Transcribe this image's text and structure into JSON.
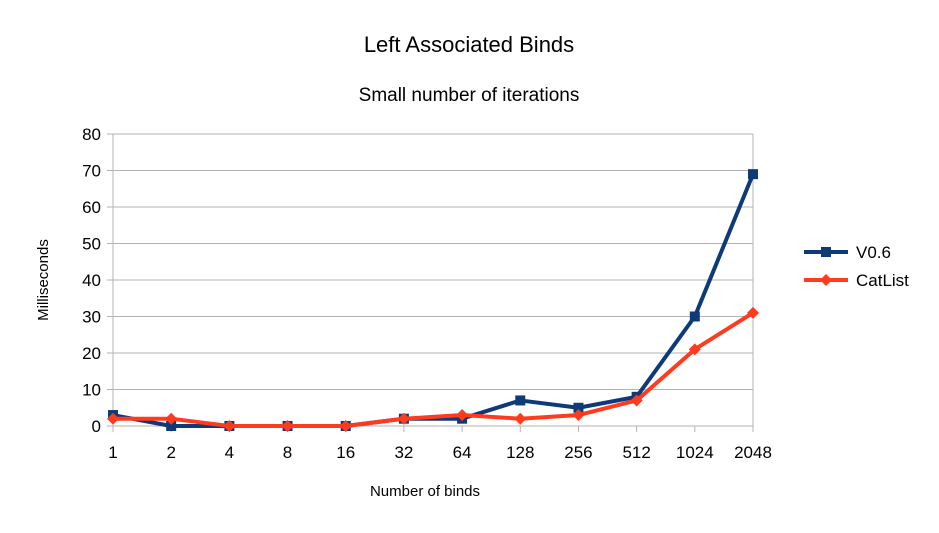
{
  "chart_data": {
    "type": "line",
    "title": "Left Associated Binds",
    "subtitle": "Small number of iterations",
    "xlabel": "Number of  binds",
    "ylabel": "Milliseconds",
    "categories": [
      "1",
      "2",
      "4",
      "8",
      "16",
      "32",
      "64",
      "128",
      "256",
      "512",
      "1024",
      "2048"
    ],
    "ylim": [
      0,
      80
    ],
    "yticks": [
      0,
      10,
      20,
      30,
      40,
      50,
      60,
      70,
      80
    ],
    "grid": true,
    "legend_position": "right",
    "series": [
      {
        "name": "V0.6",
        "color": "#0e3a78",
        "marker": "square",
        "values": [
          3,
          0,
          0,
          0,
          0,
          2,
          2,
          7,
          5,
          8,
          30,
          69
        ]
      },
      {
        "name": "CatList",
        "color": "#ff3b1f",
        "marker": "diamond",
        "values": [
          2,
          2,
          0,
          0,
          0,
          2,
          3,
          2,
          3,
          7,
          21,
          31
        ]
      }
    ]
  }
}
